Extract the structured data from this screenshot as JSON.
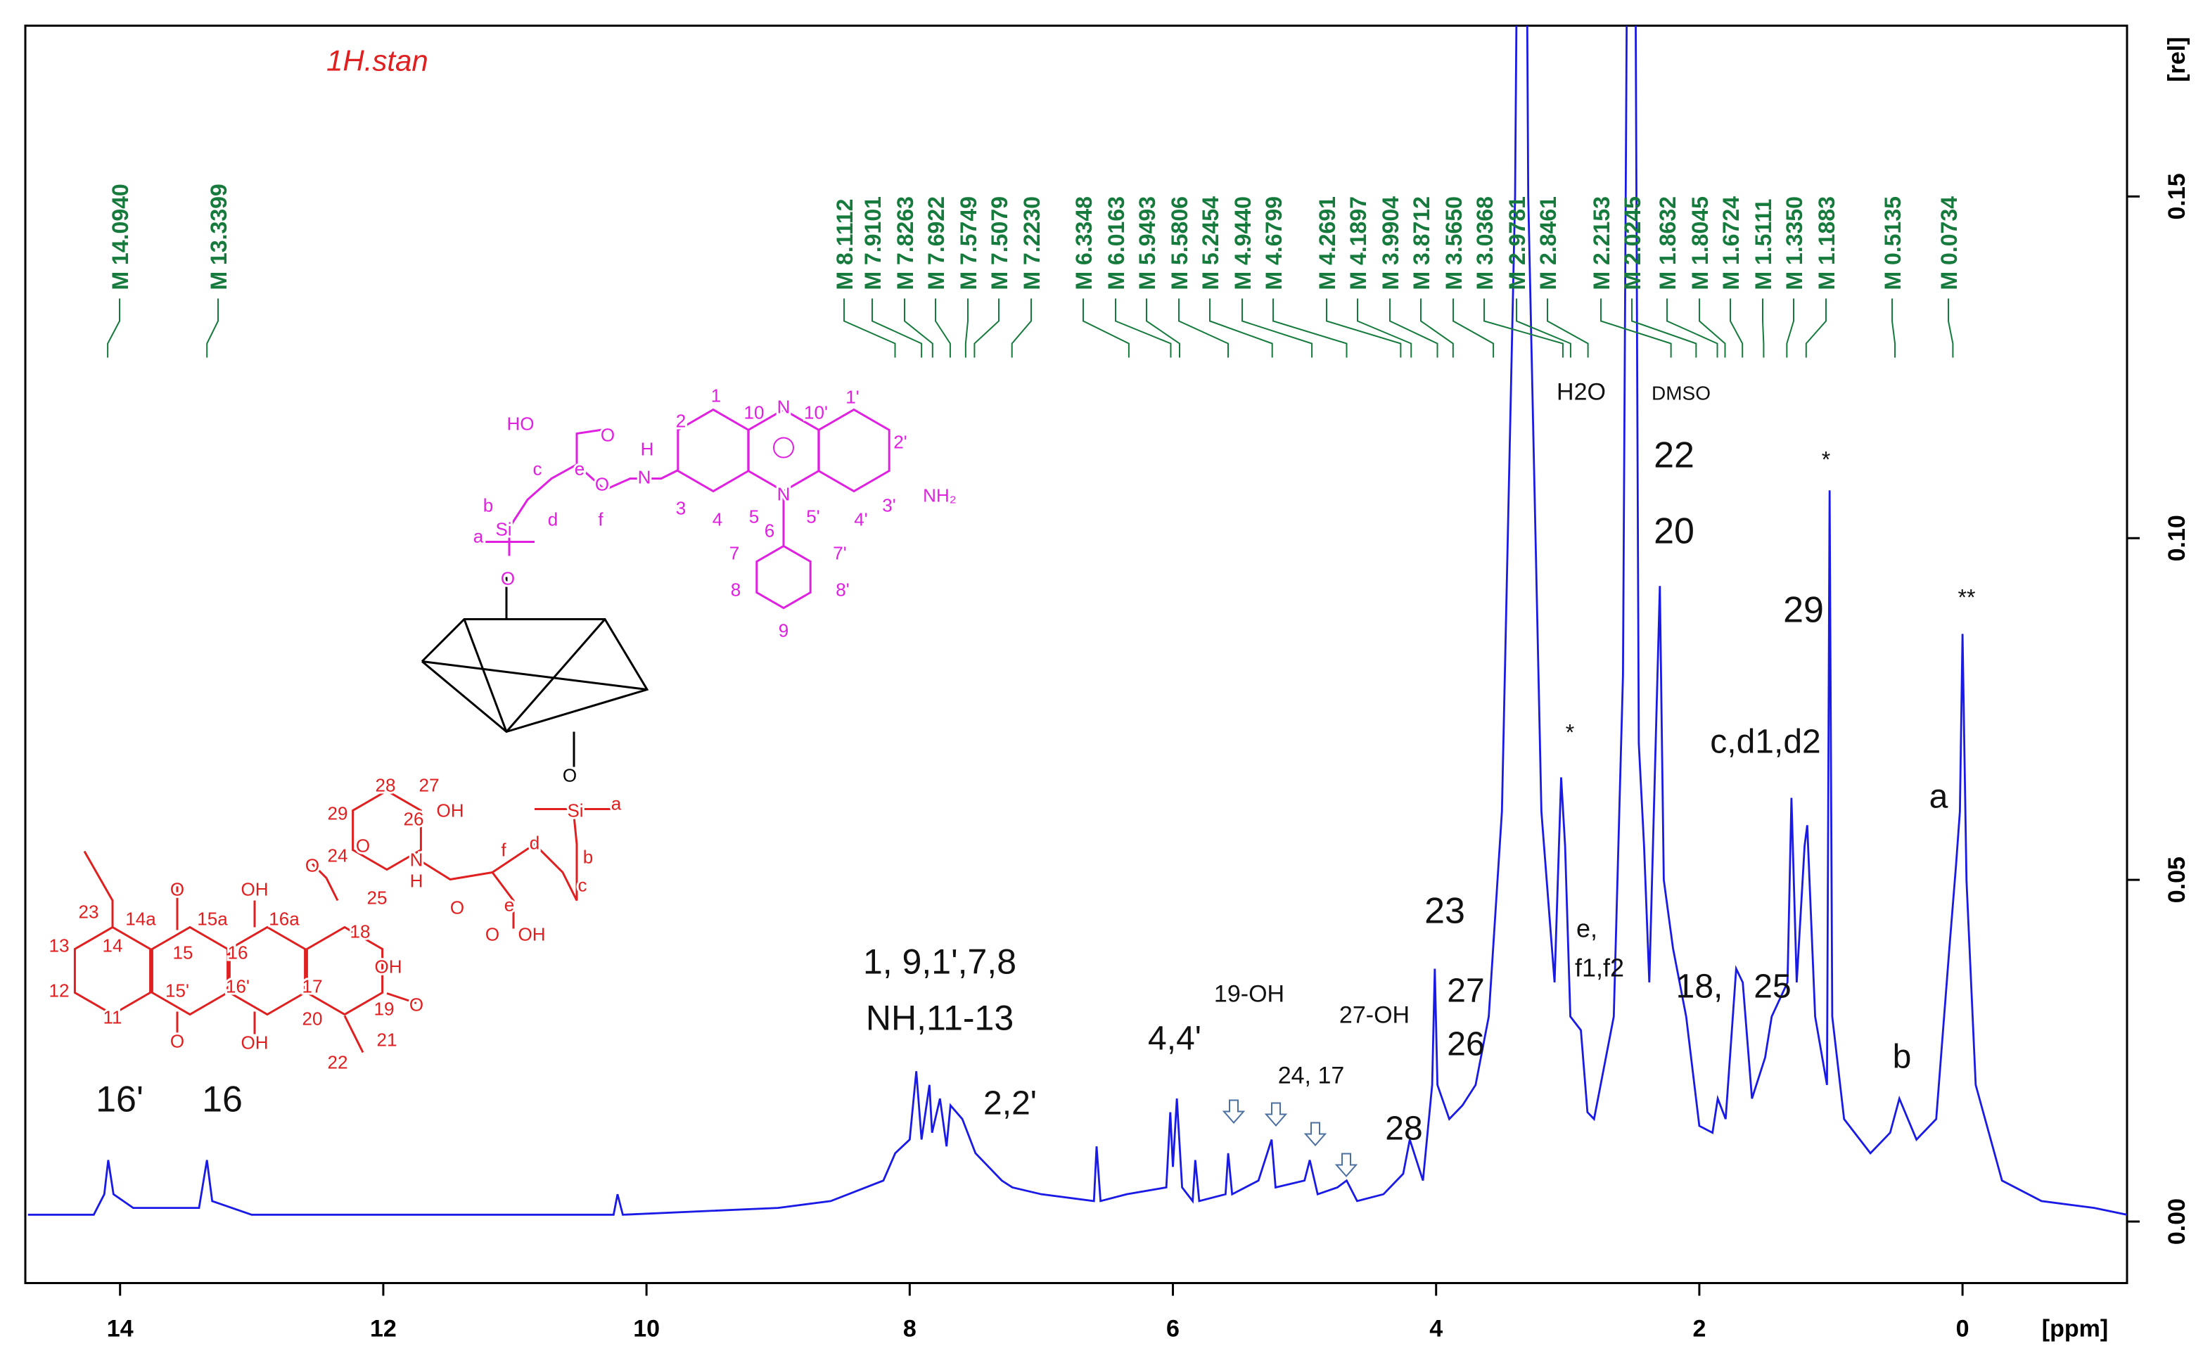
{
  "chart_data": {
    "type": "line",
    "title": "1H.stan",
    "xlabel": "[ppm]",
    "ylabel": "[rel]",
    "xlim": [
      14.72,
      -1.25
    ],
    "ylim": [
      -0.009,
      0.175
    ],
    "xticks": [
      14,
      12,
      10,
      8,
      6,
      4,
      2,
      0
    ],
    "yticks": [
      {
        "value": 0,
        "label": "0.00"
      },
      0.05,
      {
        "value": 0.1,
        "label": "0.10"
      },
      0.15
    ],
    "color": "#1a1ae6",
    "x": [
      14.7,
      14.2,
      14.12,
      14.09,
      14.05,
      13.9,
      13.4,
      13.34,
      13.3,
      13.0,
      11.0,
      10.25,
      10.22,
      10.18,
      9.0,
      8.6,
      8.2,
      8.11,
      8.0,
      7.95,
      7.91,
      7.85,
      7.83,
      7.77,
      7.72,
      7.69,
      7.6,
      7.5,
      7.3,
      7.22,
      7.0,
      6.6,
      6.58,
      6.55,
      6.35,
      6.05,
      6.02,
      6.0,
      5.97,
      5.93,
      5.85,
      5.83,
      5.8,
      5.6,
      5.58,
      5.55,
      5.35,
      5.25,
      5.22,
      5.0,
      4.96,
      4.9,
      4.75,
      4.68,
      4.6,
      4.4,
      4.25,
      4.2,
      4.1,
      4.03,
      4.01,
      3.99,
      3.9,
      3.8,
      3.7,
      3.6,
      3.5,
      3.4,
      3.36,
      3.33,
      3.3,
      3.2,
      3.1,
      3.05,
      3.02,
      2.98,
      2.9,
      2.85,
      2.8,
      2.75,
      2.65,
      2.58,
      2.53,
      2.5,
      2.46,
      2.42,
      2.38,
      2.3,
      2.27,
      2.2,
      2.1,
      2.0,
      1.9,
      1.86,
      1.8,
      1.72,
      1.67,
      1.6,
      1.5,
      1.45,
      1.33,
      1.3,
      1.26,
      1.2,
      1.18,
      1.12,
      1.03,
      1.01,
      0.99,
      0.9,
      0.7,
      0.55,
      0.48,
      0.35,
      0.2,
      0.1,
      0.05,
      0.02,
      0.0,
      -0.03,
      -0.1,
      -0.3,
      -0.6,
      -1.0,
      -1.25
    ],
    "values": [
      0.001,
      0.001,
      0.004,
      0.009,
      0.004,
      0.002,
      0.002,
      0.009,
      0.003,
      0.001,
      0.001,
      0.001,
      0.004,
      0.001,
      0.002,
      0.003,
      0.006,
      0.01,
      0.012,
      0.022,
      0.012,
      0.02,
      0.013,
      0.018,
      0.011,
      0.017,
      0.015,
      0.01,
      0.006,
      0.005,
      0.004,
      0.003,
      0.011,
      0.003,
      0.004,
      0.005,
      0.016,
      0.008,
      0.018,
      0.005,
      0.003,
      0.009,
      0.003,
      0.004,
      0.01,
      0.004,
      0.006,
      0.012,
      0.005,
      0.006,
      0.009,
      0.004,
      0.005,
      0.006,
      0.003,
      0.004,
      0.007,
      0.012,
      0.006,
      0.02,
      0.037,
      0.02,
      0.015,
      0.017,
      0.02,
      0.03,
      0.06,
      0.15,
      0.25,
      0.25,
      0.15,
      0.06,
      0.035,
      0.065,
      0.055,
      0.03,
      0.028,
      0.016,
      0.015,
      0.02,
      0.03,
      0.08,
      0.25,
      0.25,
      0.07,
      0.055,
      0.035,
      0.093,
      0.05,
      0.04,
      0.03,
      0.014,
      0.013,
      0.018,
      0.015,
      0.037,
      0.035,
      0.018,
      0.024,
      0.03,
      0.035,
      0.062,
      0.035,
      0.055,
      0.058,
      0.03,
      0.02,
      0.107,
      0.03,
      0.015,
      0.01,
      0.013,
      0.018,
      0.012,
      0.015,
      0.04,
      0.052,
      0.06,
      0.086,
      0.05,
      0.02,
      0.006,
      0.003,
      0.002,
      0.001
    ],
    "peak_color": "#157a3c",
    "peaks": [
      {
        "value": 14.094,
        "label": "M 14.0940"
      },
      {
        "value": 13.3399,
        "label": "M 13.3399"
      },
      {
        "value": 8.1112,
        "label": "M 8.1112"
      },
      {
        "value": 7.9101,
        "label": "M 7.9101"
      },
      {
        "value": 7.8263,
        "label": "M 7.8263"
      },
      {
        "value": 7.6922,
        "label": "M 7.6922"
      },
      {
        "value": 7.5749,
        "label": "M 7.5749"
      },
      {
        "value": 7.5079,
        "label": "M 7.5079"
      },
      {
        "value": 7.223,
        "label": "M 7.2230"
      },
      {
        "value": 6.3348,
        "label": "M 6.3348"
      },
      {
        "value": 6.0163,
        "label": "M 6.0163"
      },
      {
        "value": 5.9493,
        "label": "M 5.9493"
      },
      {
        "value": 5.5806,
        "label": "M 5.5806"
      },
      {
        "value": 5.2454,
        "label": "M 5.2454"
      },
      {
        "value": 4.944,
        "label": "M 4.9440"
      },
      {
        "value": 4.6799,
        "label": "M 4.6799"
      },
      {
        "value": 4.2691,
        "label": "M 4.2691"
      },
      {
        "value": 4.1897,
        "label": "M 4.1897"
      },
      {
        "value": 3.9904,
        "label": "M 3.9904"
      },
      {
        "value": 3.8712,
        "label": "M 3.8712"
      },
      {
        "value": 3.565,
        "label": "M 3.5650"
      },
      {
        "value": 3.0368,
        "label": "M 3.0368"
      },
      {
        "value": 2.9781,
        "label": "M 2.9781"
      },
      {
        "value": 2.8461,
        "label": "M 2.8461"
      },
      {
        "value": 2.2153,
        "label": "M 2.2153"
      },
      {
        "value": 2.0245,
        "label": "M 2.0245"
      },
      {
        "value": 1.8632,
        "label": "M 1.8632"
      },
      {
        "value": 1.8045,
        "label": "M 1.8045"
      },
      {
        "value": 1.6724,
        "label": "M 1.6724"
      },
      {
        "value": 1.5111,
        "label": "M 1.5111"
      },
      {
        "value": 1.335,
        "label": "M 1.3350"
      },
      {
        "value": 1.1883,
        "label": "M 1.1883"
      },
      {
        "value": 0.5135,
        "label": "M 0.5135"
      },
      {
        "value": 0.0734,
        "label": "M 0.0734"
      }
    ],
    "annotations": [
      "16'",
      "16",
      "1, 9,1',7,8",
      "NH,11-13",
      "2,2'",
      "4,4'",
      "19-OH",
      "24, 17",
      "27-OH",
      "28",
      "23",
      "27",
      "26",
      "H2O",
      "DMSO",
      "22",
      "20",
      "*",
      "*",
      "29",
      "c,d1,d2",
      "a",
      "**",
      "e,",
      "f1,f2",
      "18,",
      "25",
      "b"
    ],
    "structure_labels": {
      "magenta": [
        "HO",
        "O",
        "c",
        "e",
        "H",
        "N",
        "2",
        "1",
        "10",
        "N",
        "10'",
        "1'",
        "2'",
        "3",
        "4",
        "5",
        "N",
        "5'",
        "4'",
        "3'",
        "NH₂",
        "b",
        "d",
        "f",
        "O",
        "a",
        "Si",
        "O",
        "6",
        "7",
        "7'",
        "8",
        "8'",
        "9"
      ],
      "black": [
        "O"
      ],
      "red": [
        "29",
        "28",
        "27",
        "OH",
        "26",
        "a",
        "Si",
        "24",
        "O",
        "N",
        "H",
        "f",
        "d",
        "b",
        "25",
        "O",
        "O",
        "e",
        "c",
        "O",
        "OH",
        "23",
        "14a",
        "O",
        "15a",
        "OH",
        "16a",
        "17",
        "18",
        "13",
        "14",
        "15",
        "16",
        "OH",
        "12",
        "15'",
        "16'",
        "11",
        "20",
        "19",
        "O",
        "O",
        "OH",
        "21",
        "22"
      ]
    }
  }
}
